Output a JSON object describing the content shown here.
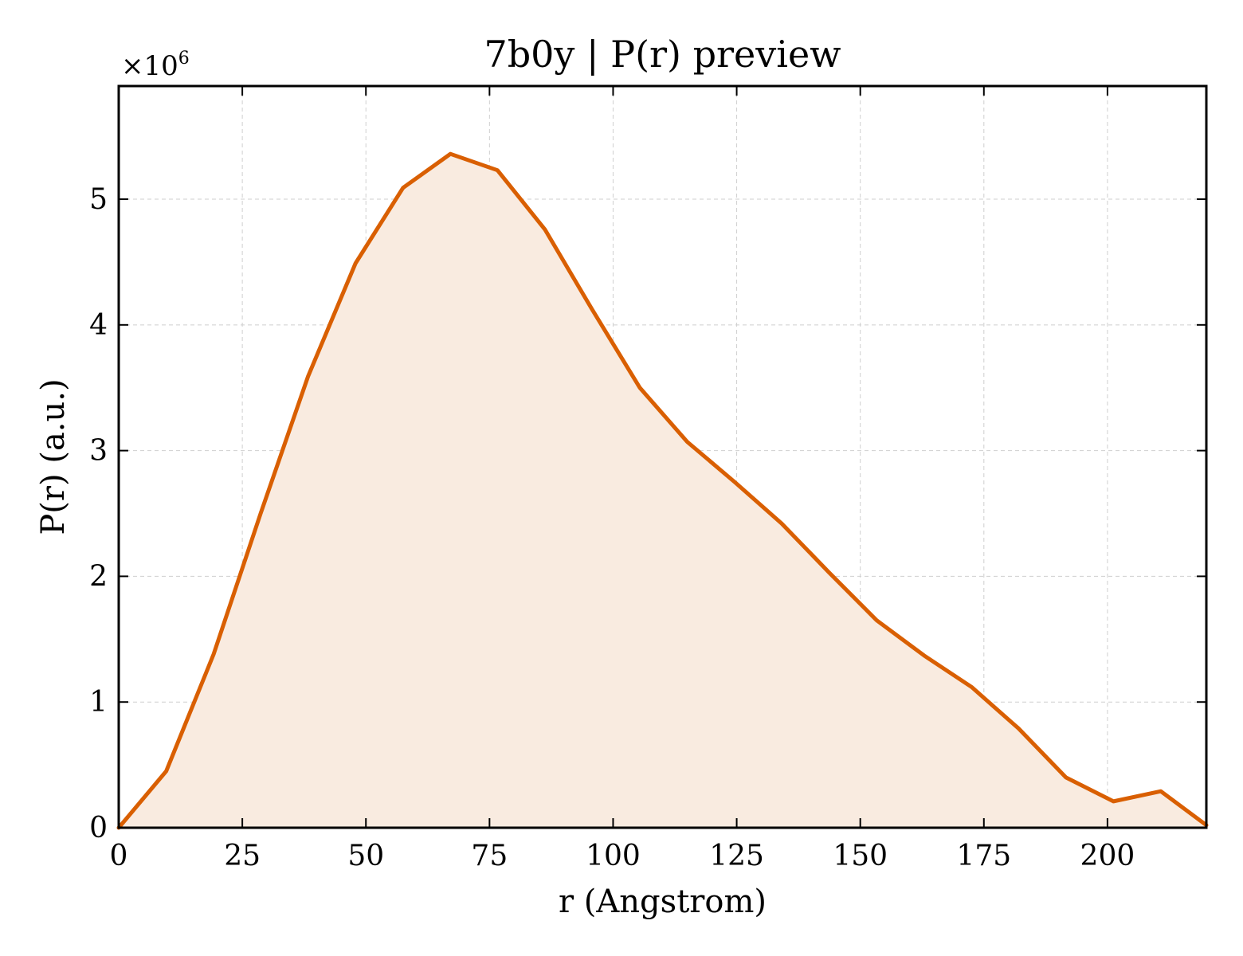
{
  "chart_data": {
    "type": "area",
    "title": "7b0y | P(r) preview",
    "xlabel": "r (Angstrom)",
    "ylabel": "P(r) (a.u.)",
    "y_offset_text": "×10",
    "y_offset_exponent": "6",
    "xlim": [
      0,
      220
    ],
    "ylim": [
      0,
      5.9
    ],
    "xticks": [
      0,
      25,
      50,
      75,
      100,
      125,
      150,
      175,
      200
    ],
    "yticks": [
      0,
      1,
      2,
      3,
      4,
      5
    ],
    "grid": true,
    "line_color": "#d95f02",
    "fill_color": "#f9ebe0",
    "series": [
      {
        "x": [
          0,
          9.6,
          19.2,
          28.7,
          38.3,
          47.9,
          57.5,
          67.1,
          76.6,
          86.2,
          95.8,
          105.4,
          115.0,
          124.6,
          134.1,
          143.7,
          153.3,
          162.9,
          172.5,
          182.0,
          191.6,
          201.2,
          210.8,
          220.0
        ],
        "y": [
          0.0,
          0.45,
          1.38,
          2.5,
          3.59,
          4.49,
          5.09,
          5.36,
          5.23,
          4.76,
          4.12,
          3.5,
          3.07,
          2.75,
          2.42,
          2.03,
          1.65,
          1.37,
          1.12,
          0.79,
          0.4,
          0.21,
          0.29,
          0.02
        ]
      }
    ]
  }
}
